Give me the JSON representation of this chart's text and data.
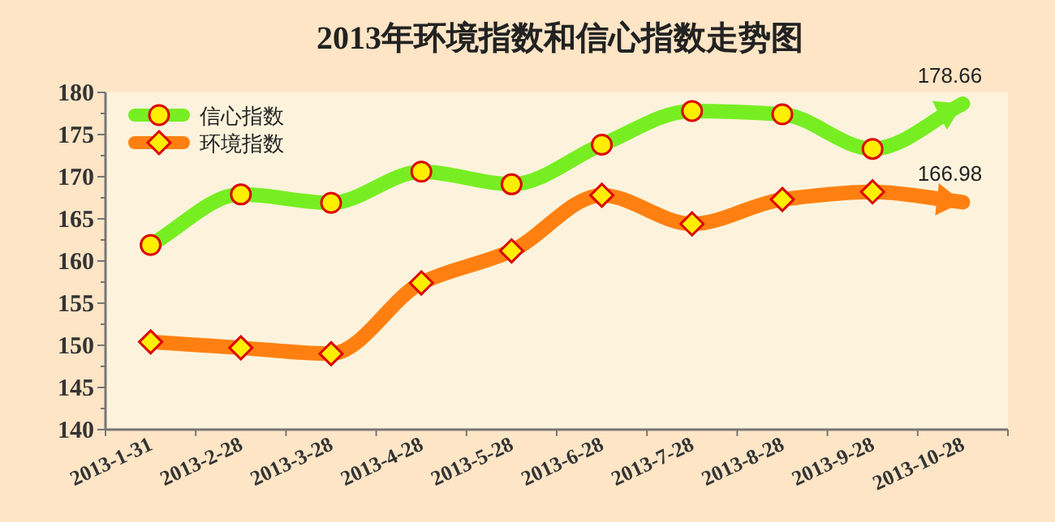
{
  "chart_data": {
    "type": "line",
    "title": "2013年环境指数和信心指数走势图",
    "categories": [
      "2013-1-31",
      "2013-2-28",
      "2013-3-28",
      "2013-4-28",
      "2013-5-28",
      "2013-6-28",
      "2013-7-28",
      "2013-8-28",
      "2013-9-28",
      "2013-10-28"
    ],
    "series": [
      {
        "name": "信心指数",
        "color": "#77ee22",
        "marker": "circle",
        "values": [
          161.9,
          167.9,
          166.9,
          170.6,
          169.1,
          173.8,
          177.8,
          177.4,
          173.3,
          178.66
        ],
        "value_labels": [
          null,
          null,
          null,
          null,
          null,
          null,
          null,
          null,
          null,
          "178.66"
        ]
      },
      {
        "name": "环境指数",
        "color": "#ff8010",
        "marker": "diamond",
        "values": [
          150.4,
          149.7,
          149.0,
          157.4,
          161.2,
          167.8,
          164.4,
          167.3,
          168.2,
          166.98
        ],
        "value_labels": [
          null,
          null,
          null,
          null,
          null,
          null,
          null,
          null,
          null,
          "166.98"
        ]
      }
    ],
    "ylim": [
      140,
      180
    ],
    "yticks": [
      140,
      145,
      150,
      155,
      160,
      165,
      170,
      175,
      180
    ],
    "grid": false,
    "legend": "top left"
  }
}
